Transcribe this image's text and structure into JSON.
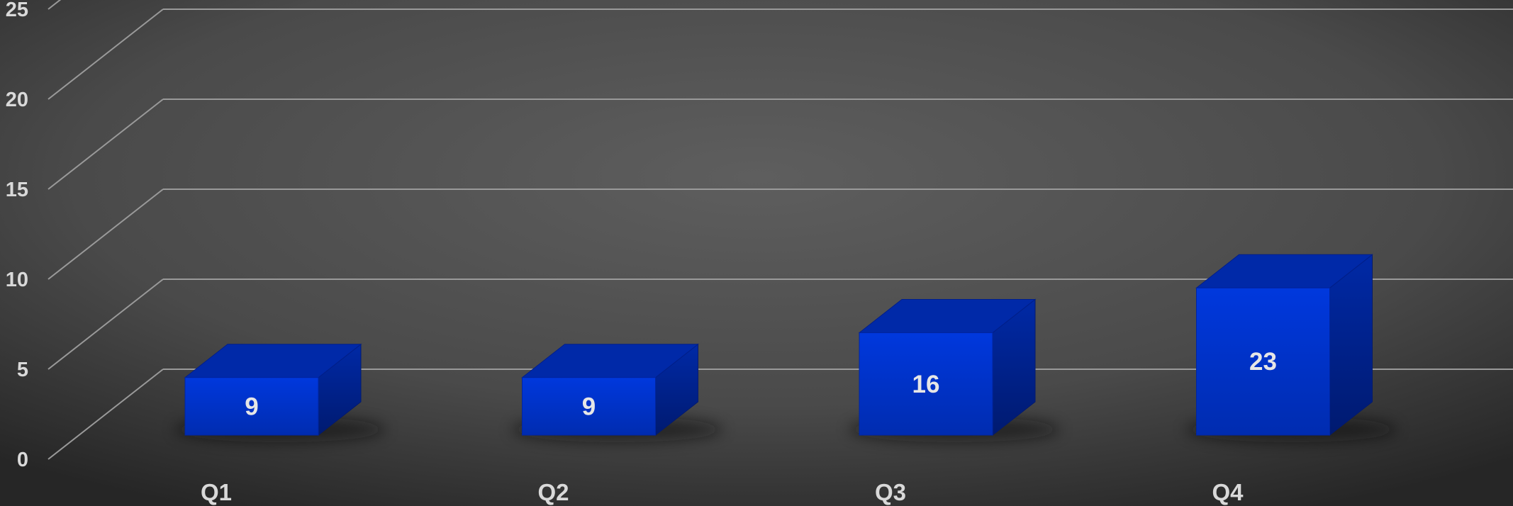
{
  "chart_data": {
    "type": "bar",
    "categories": [
      "Q1",
      "Q2",
      "Q3",
      "Q4"
    ],
    "values": [
      9,
      9,
      16,
      23
    ],
    "ylim": [
      0,
      25
    ],
    "yticks": [
      0,
      5,
      10,
      15,
      20,
      25
    ],
    "grid": true,
    "data_labels": true,
    "title": "",
    "xlabel": "",
    "ylabel": "",
    "colors": {
      "bar_front": "#0033cc",
      "bar_side": "#001f8a",
      "bar_top": "#0029a8",
      "background": "#555555",
      "gridline": "#9a9a9a",
      "text": "#d9d9d9"
    }
  }
}
